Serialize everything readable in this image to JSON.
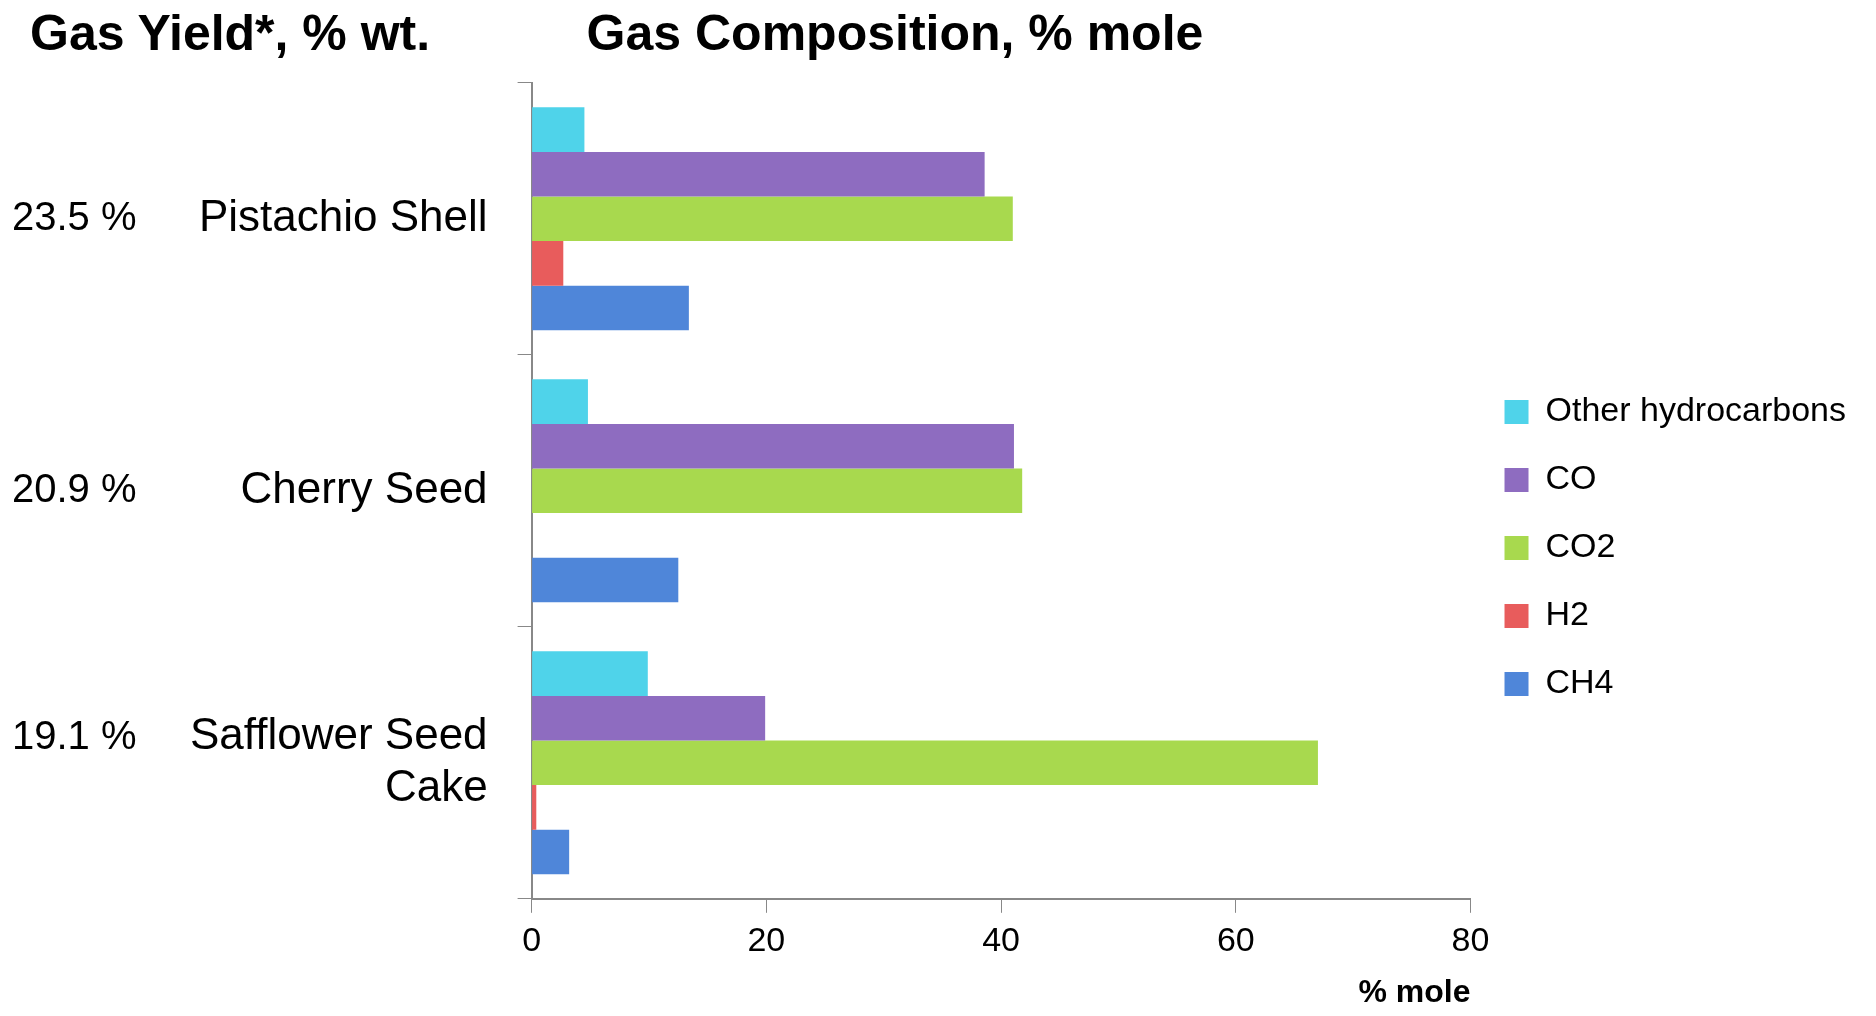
{
  "chart_data": {
    "type": "bar",
    "orientation": "horizontal",
    "title": "Gas Composition, % mole",
    "xlabel": "% mole",
    "categories": [
      "Pistachio Shell",
      "Cherry Seed",
      "Safflower Seed Cake"
    ],
    "series": [
      {
        "name": "Other hydrocarbons",
        "color": "#4fd3ea",
        "values": [
          4.5,
          4.8,
          9.9
        ]
      },
      {
        "name": "CO",
        "color": "#8e6cc0",
        "values": [
          38.6,
          41.1,
          19.9
        ]
      },
      {
        "name": "CO2",
        "color": "#a8d94e",
        "values": [
          41.0,
          41.8,
          67.0
        ]
      },
      {
        "name": "H2",
        "color": "#e85c5c",
        "values": [
          2.7,
          null,
          0.4
        ]
      },
      {
        "name": "CH4",
        "color": "#4f86d9",
        "values": [
          13.4,
          12.5,
          3.2
        ]
      }
    ],
    "xlim": [
      0,
      80
    ],
    "xticks": [
      0,
      20,
      40,
      60,
      80
    ],
    "grid": false,
    "legend": "right",
    "annotations": [
      "Gas Yield*, % wt.",
      "23.5 %",
      "20.9 %",
      "19.1 %"
    ]
  }
}
